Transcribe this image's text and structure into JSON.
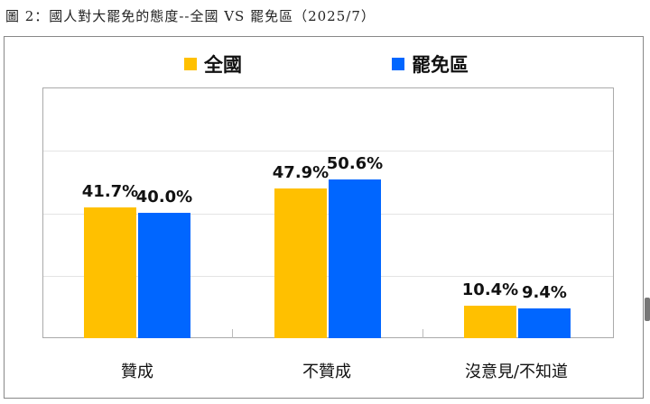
{
  "caption": "圖 2：國人對大罷免的態度--全國 VS 罷免區（2025/7）",
  "legend": [
    {
      "label": "全國",
      "color": "#FFC000"
    },
    {
      "label": "罷免區",
      "color": "#0066FF"
    }
  ],
  "labels": {
    "c0s0": "41.7%",
    "c0s1": "40.0%",
    "c1s0": "47.9%",
    "c1s1": "50.6%",
    "c2s0": "10.4%",
    "c2s1": "9.4%"
  },
  "categories": [
    "贊成",
    "不贊成",
    "沒意見/不知道"
  ],
  "chart_data": {
    "type": "bar",
    "title": "圖 2：國人對大罷免的態度--全國 VS 罷免區（2025/7）",
    "categories": [
      "贊成",
      "不贊成",
      "沒意見/不知道"
    ],
    "series": [
      {
        "name": "全國",
        "color": "#FFC000",
        "values": [
          41.7,
          47.9,
          10.4
        ]
      },
      {
        "name": "罷免區",
        "color": "#0066FF",
        "values": [
          40.0,
          50.6,
          9.4
        ]
      }
    ],
    "xlabel": "",
    "ylabel": "",
    "ylim": [
      0,
      80
    ],
    "grid": true,
    "y_axis_labels_shown": false,
    "data_labels": true,
    "legend_position": "top"
  }
}
